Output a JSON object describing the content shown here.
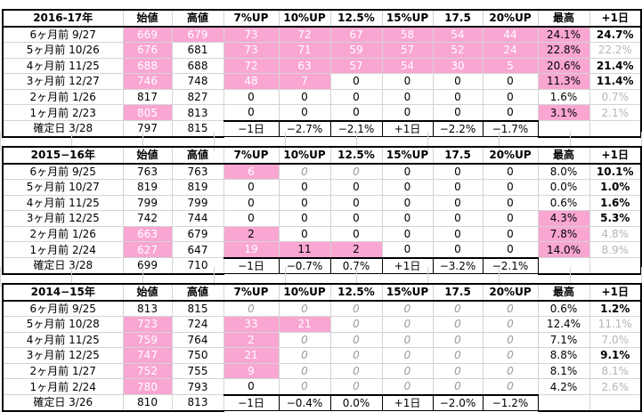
{
  "columns": [
    "始値",
    "高値",
    "7%UP",
    "10%UP",
    "12.5%",
    "15%UP",
    "17.5",
    "20%UP",
    "最高",
    "+1日"
  ],
  "blocks": [
    {
      "title": "2016-17年",
      "rows": [
        {
          "label": "6ヶ月前  9/27",
          "cells": [
            "669",
            "679",
            "73",
            "72",
            "67",
            "58",
            "54",
            "44",
            "24.1%",
            "24.7%"
          ]
        },
        {
          "label": "5ヶ月前  10/26",
          "cells": [
            "676",
            "681",
            "73",
            "71",
            "59",
            "57",
            "52",
            "24",
            "22.8%",
            "22.2%"
          ]
        },
        {
          "label": "4ヶ月前  11/25",
          "cells": [
            "688",
            "688",
            "72",
            "63",
            "57",
            "54",
            "30",
            "5",
            "20.6%",
            "21.4%"
          ]
        },
        {
          "label": "3ヶ月前  12/27",
          "cells": [
            "746",
            "748",
            "48",
            "7",
            "0",
            "0",
            "0",
            "0",
            "11.3%",
            "11.4%"
          ]
        },
        {
          "label": "2ヶ月前  1/26",
          "cells": [
            "817",
            "827",
            "0",
            "0",
            "0",
            "0",
            "0",
            "0",
            "1.6%",
            "0.7%"
          ]
        },
        {
          "label": "1ヶ月前  2/23",
          "cells": [
            "805",
            "813",
            "0",
            "0",
            "0",
            "0",
            "0",
            "0",
            "3.1%",
            "2.1%"
          ]
        },
        {
          "label": "確定日  3/28",
          "cells": [
            "797",
            "815",
            "−1日",
            "−2.7%",
            "−2.1%",
            "+1日",
            "−2.2%",
            "−1.7%",
            "",
            ""
          ]
        }
      ]
    },
    {
      "title": "2015−16年",
      "rows": [
        {
          "label": "6ヶ月前  9/25",
          "cells": [
            "763",
            "763",
            "6",
            "0",
            "0",
            "0",
            "0",
            "0",
            "8.0%",
            "10.1%"
          ]
        },
        {
          "label": "5ヶ月前  10/27",
          "cells": [
            "819",
            "819",
            "0",
            "0",
            "0",
            "0",
            "0",
            "0",
            "0.0%",
            "1.0%"
          ]
        },
        {
          "label": "4ヶ月前  11/25",
          "cells": [
            "799",
            "799",
            "0",
            "0",
            "0",
            "0",
            "0",
            "0",
            "0.6%",
            "1.6%"
          ]
        },
        {
          "label": "3ヶ月前  12/25",
          "cells": [
            "742",
            "744",
            "0",
            "0",
            "0",
            "0",
            "0",
            "0",
            "4.3%",
            "5.3%"
          ]
        },
        {
          "label": "2ヶ月前  1/26",
          "cells": [
            "663",
            "679",
            "2",
            "0",
            "0",
            "0",
            "0",
            "0",
            "7.8%",
            "4.8%"
          ]
        },
        {
          "label": "1ヶ月前  2/24",
          "cells": [
            "627",
            "647",
            "19",
            "11",
            "2",
            "0",
            "0",
            "0",
            "14.0%",
            "8.9%"
          ]
        },
        {
          "label": "確定日  3/28",
          "cells": [
            "699",
            "710",
            "−1日",
            "−0.7%",
            "0.7%",
            "+1日",
            "−3.2%",
            "−2.1%",
            "",
            ""
          ]
        }
      ]
    },
    {
      "title": "2014−15年",
      "rows": [
        {
          "label": "6ヶ月前  9/25",
          "cells": [
            "813",
            "815",
            "0",
            "0",
            "0",
            "0",
            "0",
            "0",
            "0.6%",
            "1.2%"
          ]
        },
        {
          "label": "5ヶ月前  10/28",
          "cells": [
            "723",
            "724",
            "33",
            "21",
            "0",
            "0",
            "0",
            "0",
            "12.4%",
            "11.1%"
          ]
        },
        {
          "label": "4ヶ月前  11/25",
          "cells": [
            "759",
            "764",
            "2",
            "0",
            "0",
            "0",
            "0",
            "0",
            "7.1%",
            "7.0%"
          ]
        },
        {
          "label": "3ヶ月前  12/25",
          "cells": [
            "747",
            "750",
            "21",
            "0",
            "0",
            "0",
            "0",
            "0",
            "8.8%",
            "9.1%"
          ]
        },
        {
          "label": "2ヶ月前  1/27",
          "cells": [
            "752",
            "755",
            "9",
            "0",
            "0",
            "0",
            "0",
            "0",
            "8.1%",
            "8.1%"
          ]
        },
        {
          "label": "1ヶ月前  2/24",
          "cells": [
            "780",
            "793",
            "0",
            "0",
            "0",
            "0",
            "0",
            "0",
            "4.2%",
            "2.6%"
          ]
        },
        {
          "label": "確定日  3/26",
          "cells": [
            "810",
            "813",
            "−1日",
            "−0.4%",
            "0.0%",
            "+1日",
            "−2.0%",
            "−1.2%",
            "",
            ""
          ]
        }
      ]
    }
  ]
}
